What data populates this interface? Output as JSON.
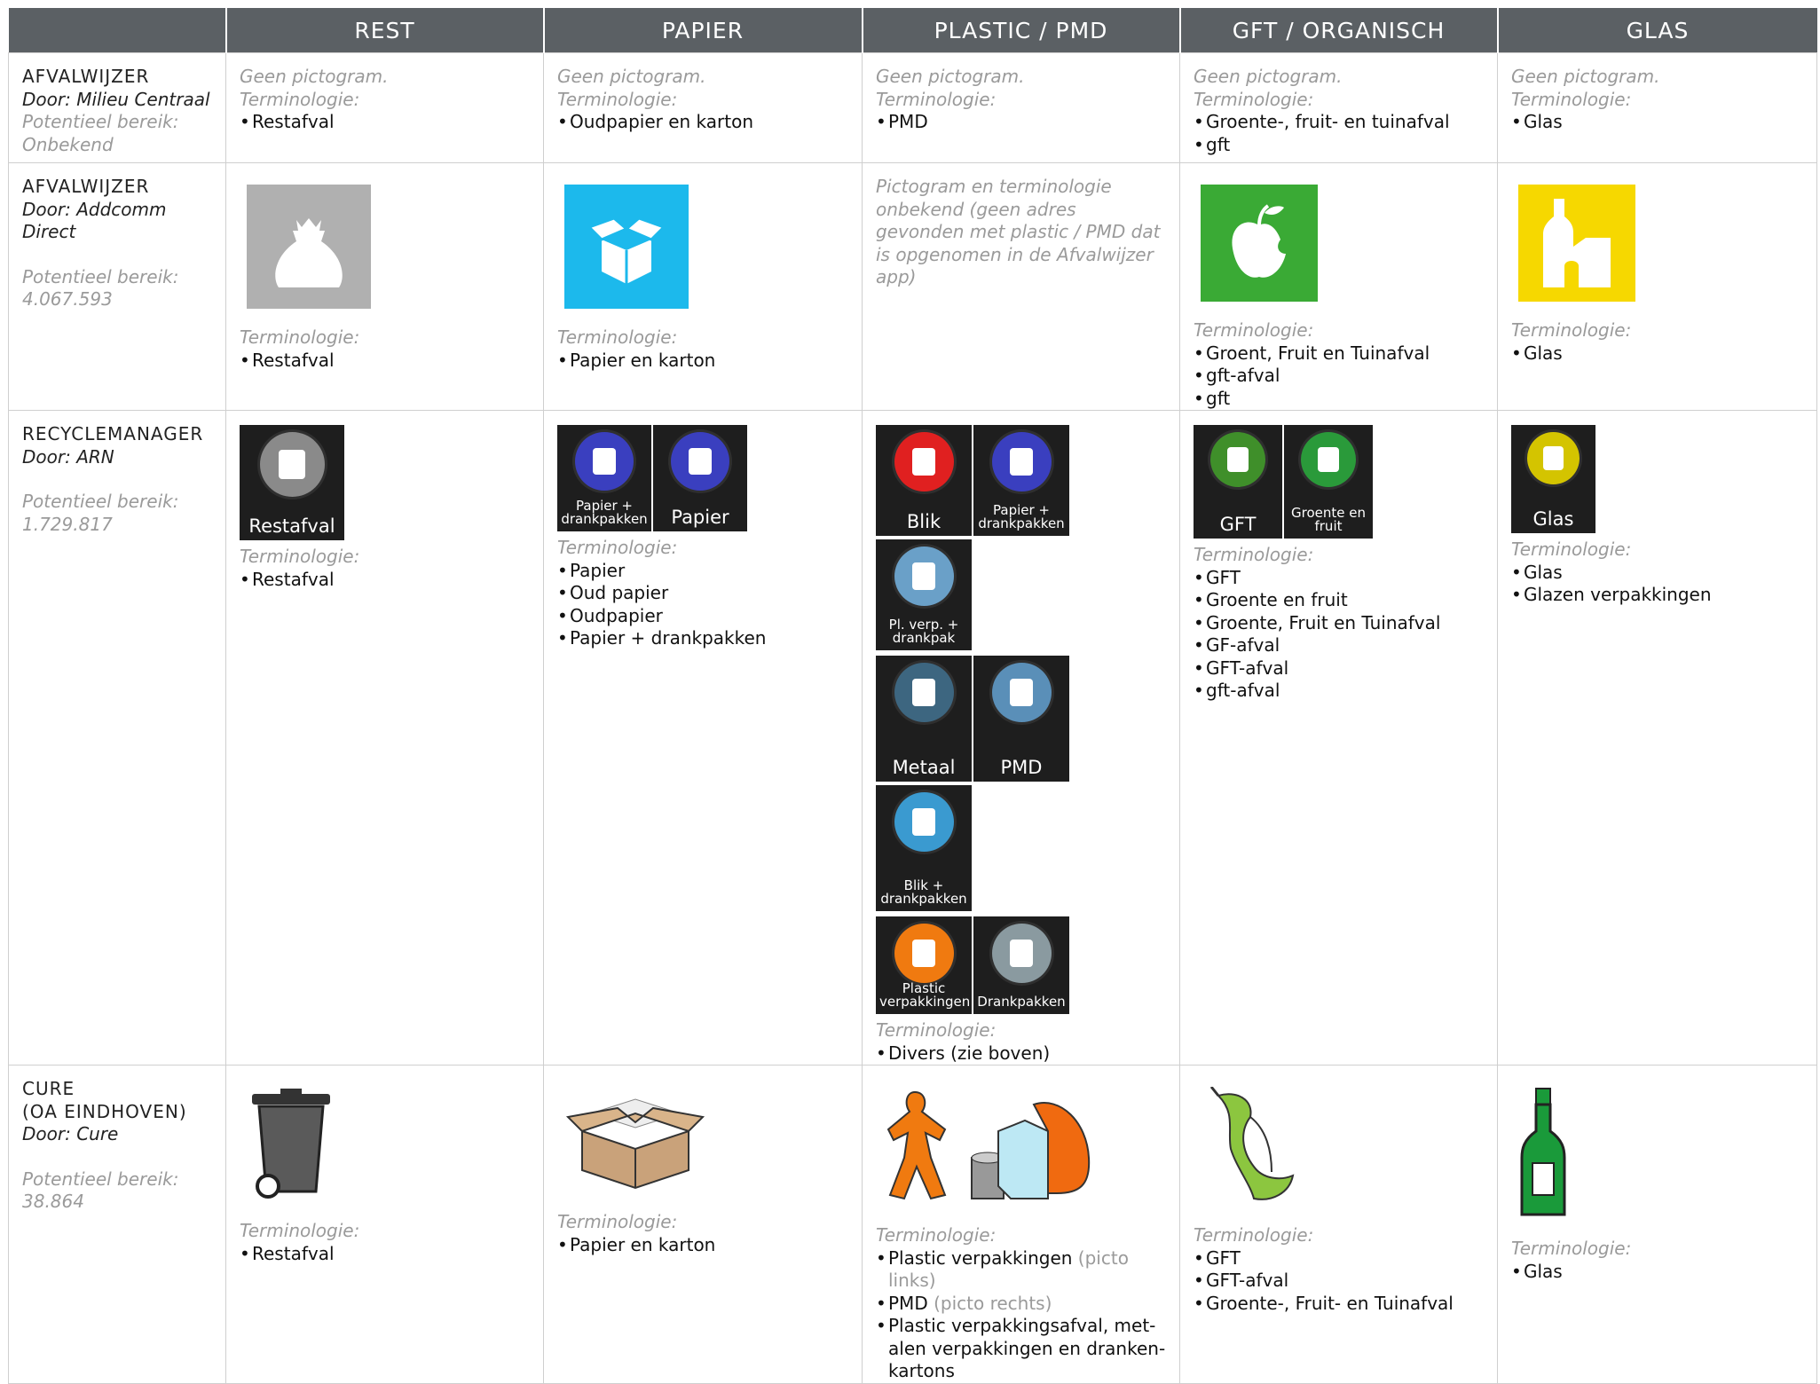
{
  "header": {
    "columns": [
      "REST",
      "PAPIER",
      "PLASTIC / PMD",
      "GFT / ORGANISCH",
      "GLAS"
    ]
  },
  "rows": [
    {
      "source": [
        "AFVALWIJZER"
      ],
      "by": "Door: Milieu Centraal",
      "reach_label": "Potentieel bereik:",
      "reach": "Onbekend",
      "cells": [
        {
          "note": "Geen pictogram.",
          "term_label": "Terminologie:",
          "items": [
            "Restafval"
          ]
        },
        {
          "note": "Geen pictogram.",
          "term_label": "Terminologie:",
          "items": [
            "Oudpapier en karton"
          ]
        },
        {
          "note": "Geen pictogram.",
          "term_label": "Terminologie:",
          "items": [
            "PMD"
          ]
        },
        {
          "note": "Geen pictogram.",
          "term_label": "Terminologie:",
          "items": [
            "Groente-, fruit- en tuinafval",
            "gft"
          ]
        },
        {
          "note": "Geen pictogram.",
          "term_label": "Terminologie:",
          "items": [
            "Glas"
          ]
        }
      ]
    },
    {
      "source": [
        "AFVALWIJZER"
      ],
      "by": "Door: Addcomm Direct",
      "reach_label": "Potentieel bereik:",
      "reach": "4.067.593",
      "cells": [
        {
          "term_label": "Terminologie:",
          "items": [
            "Restafval"
          ]
        },
        {
          "term_label": "Terminologie:",
          "items": [
            "Papier en karton"
          ]
        },
        {
          "note": "Pictogram en terminologie onbekend (geen adres gevonden met plastic / PMD dat is opgenomen in de Afvalwijzer app)"
        },
        {
          "term_label": "Terminologie:",
          "items": [
            "Groent, Fruit en Tuinafval",
            "gft-afval",
            "gft"
          ]
        },
        {
          "term_label": "Terminologie:",
          "items": [
            "Glas"
          ]
        }
      ]
    },
    {
      "source": [
        "RECYCLEMANAGER"
      ],
      "by": "Door: ARN",
      "reach_label": "Potentieel bereik:",
      "reach": "1.729.817",
      "cells": [
        {
          "icon_labels": [
            "Restafval"
          ],
          "term_label": "Terminologie:",
          "items": [
            "Restafval"
          ]
        },
        {
          "icon_labels": [
            "Papier + drankpakken",
            "Papier"
          ],
          "term_label": "Terminologie:",
          "items": [
            "Papier",
            "Oud papier",
            "Oudpapier",
            "Papier + drankpakken"
          ]
        },
        {
          "icon_labels": [
            "Blik",
            "Papier + drankpakken",
            "Pl. verp. + drankpak",
            "Metaal",
            "PMD",
            "Blik + drankpakken",
            "Plastic verpakkingen",
            "Drankpakken"
          ],
          "term_label": "Terminologie:",
          "items": [
            "Divers (zie boven)"
          ]
        },
        {
          "icon_labels": [
            "GFT",
            "Groente en fruit"
          ],
          "term_label": "Terminologie:",
          "items": [
            "GFT",
            "Groente en fruit",
            "Groente, Fruit en Tuinafval",
            "GF-afval",
            "GFT-afval",
            "gft-afval"
          ]
        },
        {
          "icon_labels": [
            "Glas"
          ],
          "term_label": "Terminologie:",
          "items": [
            "Glas",
            "Glazen verpakkingen"
          ]
        }
      ]
    },
    {
      "source": [
        "CURE",
        "(OA EINDHOVEN)"
      ],
      "by": "Door: Cure",
      "reach_label": "Potentieel bereik:",
      "reach": "38.864",
      "cells": [
        {
          "term_label": "Terminologie:",
          "items": [
            "Restafval"
          ]
        },
        {
          "term_label": "Terminologie:",
          "items": [
            "Papier en karton"
          ]
        },
        {
          "term_label": "Terminologie:",
          "items": [
            {
              "text": "Plastic verpakkingen",
              "note": "(picto links)"
            },
            {
              "text": "PMD",
              "note": "(picto rechts)"
            },
            {
              "text": "Plastic verpakkingsafval, met­alen verpakkingen en dranken­kartons"
            }
          ]
        },
        {
          "term_label": "Terminologie:",
          "items": [
            "GFT",
            "GFT-afval",
            "Groente-, Fruit- en Tuinafval"
          ]
        },
        {
          "term_label": "Terminologie:",
          "items": [
            "Glas"
          ]
        }
      ]
    }
  ]
}
